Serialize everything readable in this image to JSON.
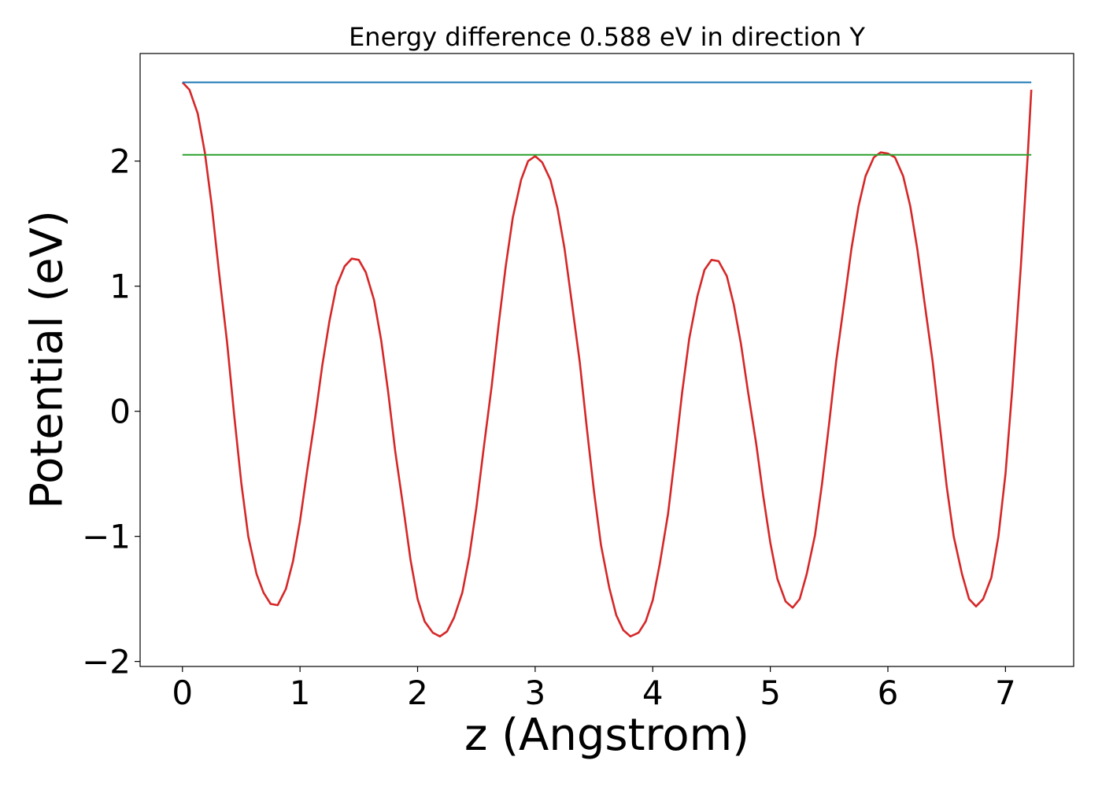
{
  "chart_data": {
    "type": "line",
    "title": "Energy difference 0.588 eV in direction Y",
    "xlabel": "z (Angstrom)",
    "ylabel": "Potential (eV)",
    "xlim": [
      -0.36,
      7.58
    ],
    "ylim": [
      -2.04,
      2.86
    ],
    "xticks": [
      0,
      1,
      2,
      3,
      4,
      5,
      6,
      7
    ],
    "xtick_labels": [
      "0",
      "1",
      "2",
      "3",
      "4",
      "5",
      "6",
      "7"
    ],
    "yticks": [
      -2,
      -1,
      0,
      1,
      2
    ],
    "ytick_labels": [
      "−2",
      "−1",
      "0",
      "1",
      "2"
    ],
    "grid": false,
    "series": [
      {
        "color": "#d62728",
        "x": [
          0.0,
          0.06,
          0.13,
          0.19,
          0.25,
          0.31,
          0.38,
          0.44,
          0.5,
          0.56,
          0.63,
          0.69,
          0.75,
          0.81,
          0.88,
          0.94,
          1.0,
          1.06,
          1.13,
          1.19,
          1.25,
          1.31,
          1.38,
          1.44,
          1.5,
          1.56,
          1.63,
          1.69,
          1.75,
          1.81,
          1.88,
          1.94,
          2.0,
          2.06,
          2.13,
          2.19,
          2.25,
          2.31,
          2.38,
          2.44,
          2.5,
          2.56,
          2.63,
          2.69,
          2.75,
          2.81,
          2.88,
          2.94,
          3.0,
          3.06,
          3.13,
          3.19,
          3.25,
          3.31,
          3.38,
          3.44,
          3.5,
          3.56,
          3.63,
          3.69,
          3.75,
          3.81,
          3.88,
          3.94,
          4.0,
          4.06,
          4.13,
          4.19,
          4.25,
          4.31,
          4.38,
          4.44,
          4.5,
          4.56,
          4.63,
          4.69,
          4.75,
          4.81,
          4.88,
          4.94,
          5.0,
          5.06,
          5.13,
          5.19,
          5.25,
          5.31,
          5.38,
          5.44,
          5.5,
          5.56,
          5.63,
          5.69,
          5.75,
          5.81,
          5.88,
          5.94,
          6.0,
          6.06,
          6.13,
          6.19,
          6.25,
          6.31,
          6.38,
          6.44,
          6.5,
          6.56,
          6.63,
          6.69,
          6.75,
          6.81,
          6.88,
          6.94,
          7.0,
          7.06,
          7.13,
          7.19,
          7.22
        ],
        "y": [
          2.63,
          2.57,
          2.38,
          2.07,
          1.64,
          1.12,
          0.55,
          -0.03,
          -0.57,
          -1.0,
          -1.3,
          -1.45,
          -1.54,
          -1.55,
          -1.42,
          -1.2,
          -0.88,
          -0.48,
          -0.04,
          0.37,
          0.72,
          1.0,
          1.16,
          1.22,
          1.21,
          1.11,
          0.89,
          0.57,
          0.15,
          -0.32,
          -0.78,
          -1.19,
          -1.5,
          -1.68,
          -1.77,
          -1.8,
          -1.76,
          -1.65,
          -1.45,
          -1.16,
          -0.77,
          -0.31,
          0.2,
          0.7,
          1.16,
          1.55,
          1.85,
          2.0,
          2.04,
          1.99,
          1.85,
          1.62,
          1.3,
          0.88,
          0.39,
          -0.14,
          -0.64,
          -1.07,
          -1.41,
          -1.63,
          -1.75,
          -1.8,
          -1.77,
          -1.68,
          -1.51,
          -1.22,
          -0.82,
          -0.35,
          0.15,
          0.58,
          0.92,
          1.13,
          1.21,
          1.2,
          1.08,
          0.85,
          0.54,
          0.16,
          -0.26,
          -0.68,
          -1.05,
          -1.34,
          -1.52,
          -1.57,
          -1.5,
          -1.3,
          -0.99,
          -0.58,
          -0.1,
          0.4,
          0.88,
          1.3,
          1.64,
          1.88,
          2.03,
          2.07,
          2.06,
          2.03,
          1.88,
          1.64,
          1.3,
          0.88,
          0.4,
          -0.1,
          -0.6,
          -1.0,
          -1.3,
          -1.5,
          -1.56,
          -1.5,
          -1.33,
          -1.0,
          -0.5,
          0.2,
          1.15,
          2.05,
          2.57
        ]
      },
      {
        "color": "#1f77b4",
        "x": [
          0.0,
          7.22
        ],
        "y": [
          2.63,
          2.63
        ]
      },
      {
        "color": "#2ca02c",
        "x": [
          0.0,
          7.22
        ],
        "y": [
          2.05,
          2.05
        ]
      }
    ]
  }
}
